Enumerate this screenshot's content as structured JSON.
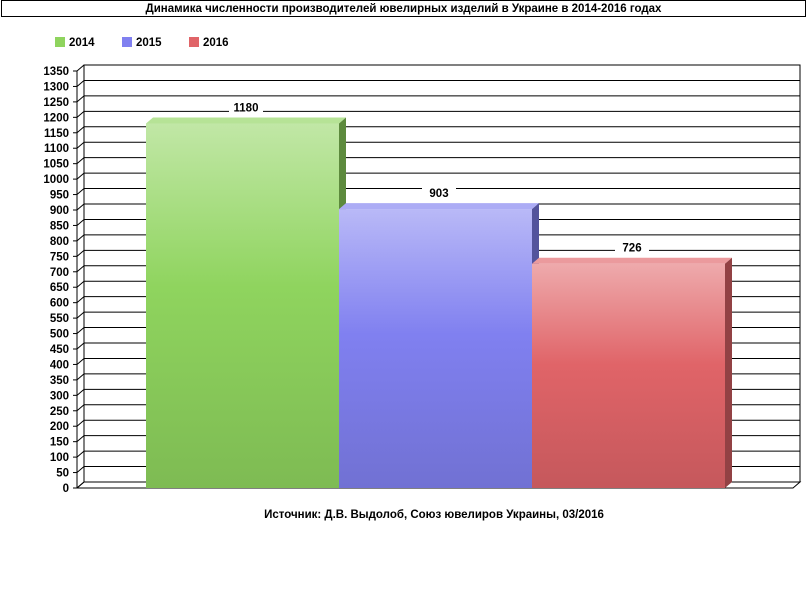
{
  "chart_data": {
    "type": "bar",
    "title": "Динамика численности производителей ювелирных изделий в Украине в 2014-2016 годах",
    "series": [
      {
        "name": "2014",
        "values": [
          1180
        ],
        "color": "#8fd45e"
      },
      {
        "name": "2015",
        "values": [
          903
        ],
        "color": "#8080f0"
      },
      {
        "name": "2016",
        "values": [
          726
        ],
        "color": "#e06468"
      }
    ],
    "data_labels": [
      "1180",
      "903",
      "726"
    ],
    "ylim": [
      0,
      1350
    ],
    "y_ticks": [
      "0",
      "50",
      "100",
      "150",
      "200",
      "250",
      "300",
      "350",
      "400",
      "450",
      "500",
      "550",
      "600",
      "650",
      "700",
      "750",
      "800",
      "850",
      "900",
      "950",
      "1000",
      "1050",
      "1100",
      "1150",
      "1200",
      "1250",
      "1300",
      "1350"
    ],
    "grid": true,
    "legend_position": "top-left",
    "source_note": "Источник: Д.В. Выдолоб, Союз ювелиров Украины, 03/2016"
  }
}
